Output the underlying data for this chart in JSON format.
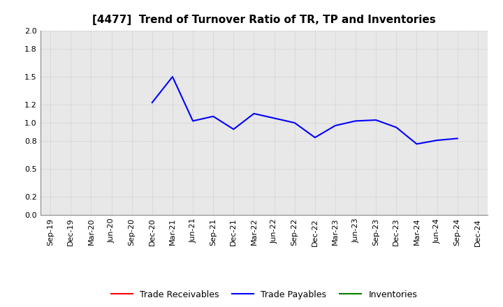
{
  "title": "[4477]  Trend of Turnover Ratio of TR, TP and Inventories",
  "x_labels": [
    "Sep-19",
    "Dec-19",
    "Mar-20",
    "Jun-20",
    "Sep-20",
    "Dec-20",
    "Mar-21",
    "Jun-21",
    "Sep-21",
    "Dec-21",
    "Mar-22",
    "Jun-22",
    "Sep-22",
    "Dec-22",
    "Mar-23",
    "Jun-23",
    "Sep-23",
    "Dec-23",
    "Mar-24",
    "Jun-24",
    "Sep-24",
    "Dec-24"
  ],
  "trade_payables": [
    null,
    null,
    null,
    null,
    null,
    1.22,
    1.5,
    1.02,
    1.07,
    0.93,
    1.1,
    1.05,
    1.0,
    0.84,
    0.97,
    1.02,
    1.03,
    0.95,
    0.77,
    0.81,
    0.83,
    null
  ],
  "trade_receivables": [
    null,
    null,
    null,
    null,
    null,
    null,
    null,
    null,
    null,
    null,
    null,
    null,
    null,
    null,
    null,
    null,
    null,
    null,
    null,
    null,
    null,
    null
  ],
  "inventories": [
    null,
    null,
    null,
    null,
    null,
    null,
    null,
    null,
    null,
    null,
    null,
    null,
    null,
    null,
    null,
    null,
    null,
    null,
    null,
    null,
    null,
    null
  ],
  "ylim": [
    0.0,
    2.0
  ],
  "yticks": [
    0.0,
    0.2,
    0.5,
    0.8,
    1.0,
    1.2,
    1.5,
    1.8,
    2.0
  ],
  "line_color_tp": "#0000FF",
  "line_color_tr": "#FF0000",
  "line_color_inv": "#008000",
  "background_color": "#FFFFFF",
  "plot_bg_color": "#E8E8E8",
  "grid_color": "#BBBBBB",
  "legend_labels": [
    "Trade Receivables",
    "Trade Payables",
    "Inventories"
  ],
  "title_fontsize": 11,
  "tick_fontsize": 8
}
